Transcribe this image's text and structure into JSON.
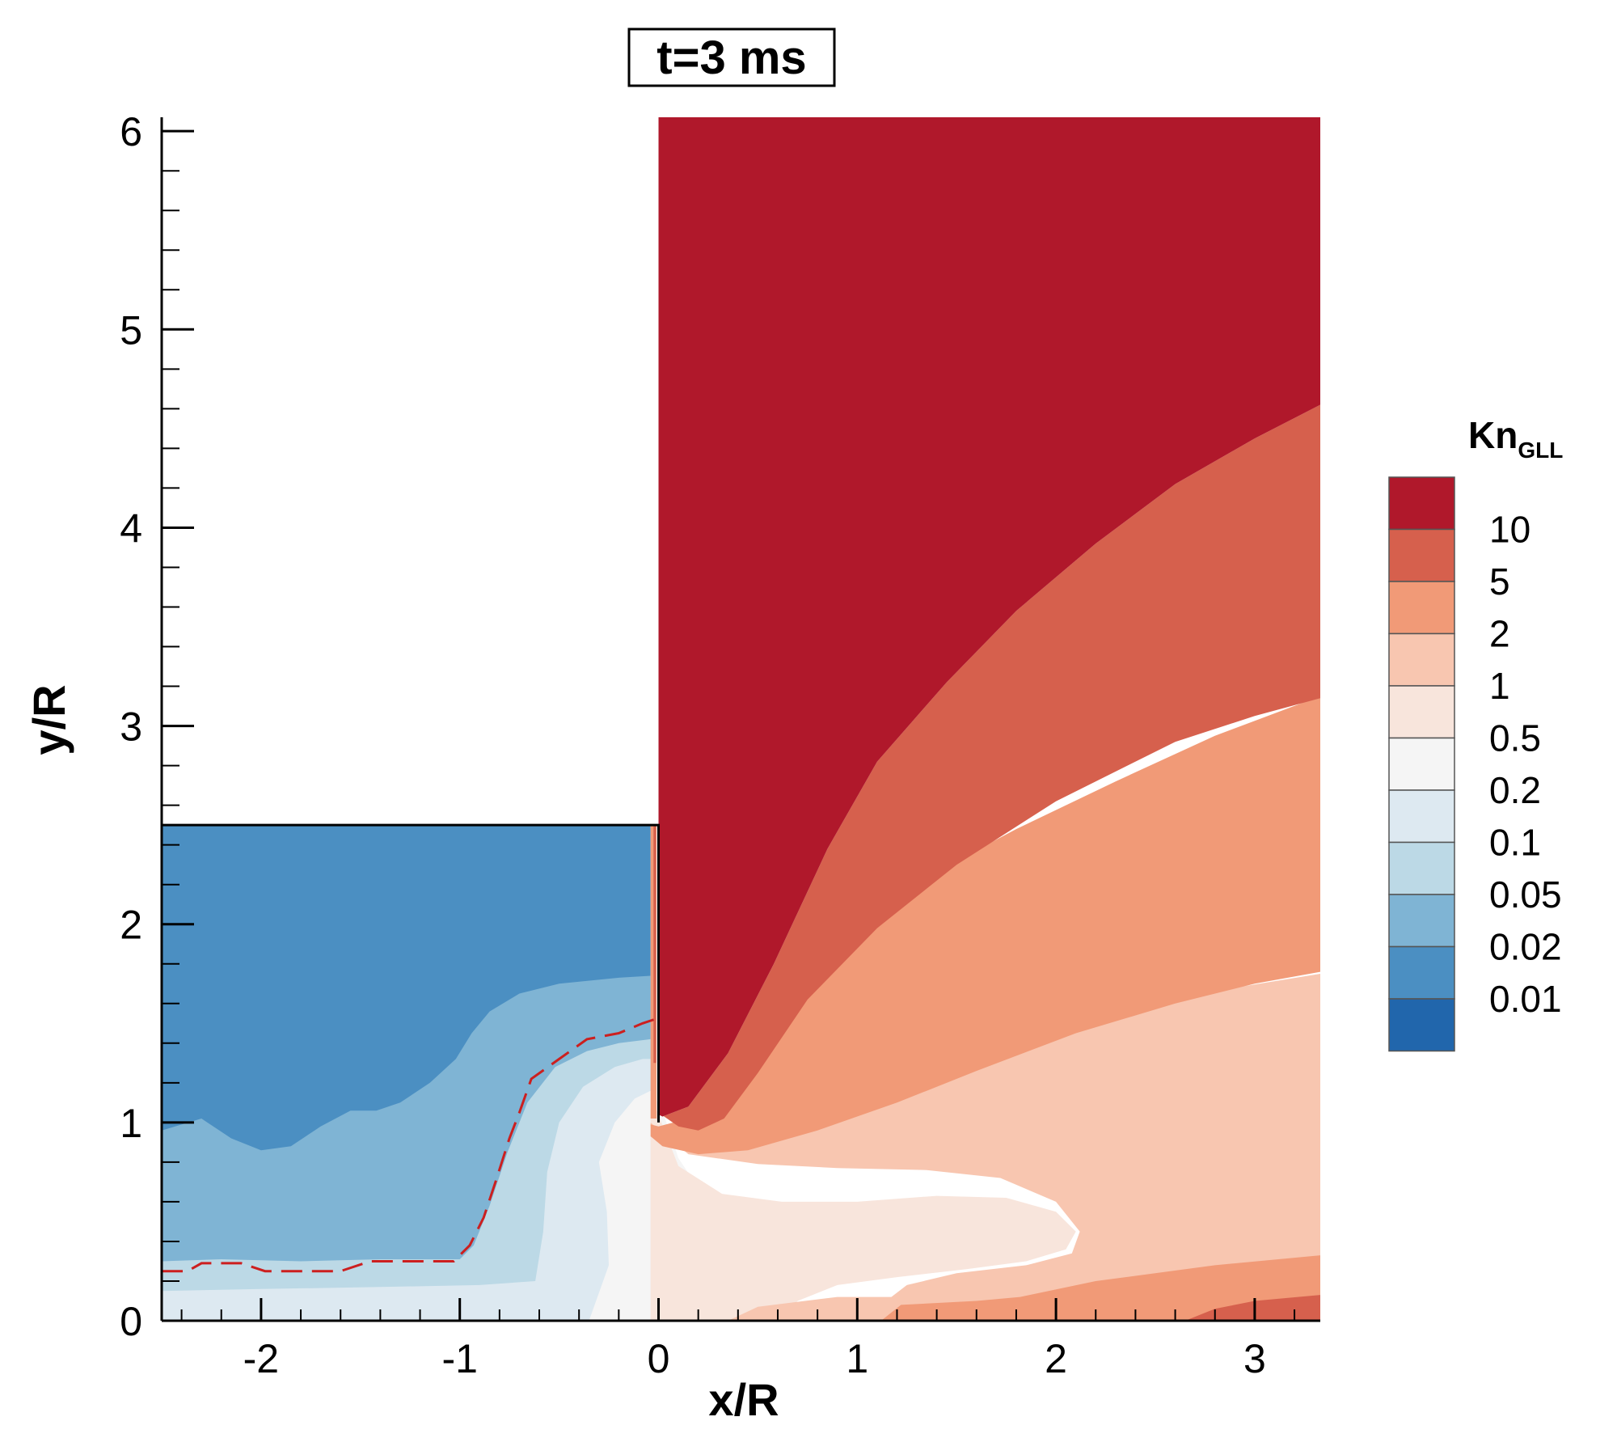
{
  "chart_data": {
    "type": "heatmap",
    "title": "t=3 ms",
    "xlabel": "x/R",
    "ylabel": "y/R",
    "xlim": [
      -2.5,
      3.33
    ],
    "ylim": [
      0,
      6.07
    ],
    "x_ticks": [
      -2,
      -1,
      0,
      1,
      2,
      3
    ],
    "y_ticks": [
      0,
      1,
      2,
      3,
      4,
      5,
      6
    ],
    "x_minor_step": 0.2,
    "y_minor_step": 0.2,
    "legend": {
      "title_main": "Kn",
      "title_sub": "GLL",
      "position": "right",
      "levels": [
        "10",
        "5",
        "2",
        "1",
        "0.5",
        "0.2",
        "0.1",
        "0.05",
        "0.02",
        "0.01"
      ],
      "colors": [
        "#b0182b",
        "#d6604d",
        "#f19a77",
        "#f8c6b0",
        "#f8e5dc",
        "#f5f5f5",
        "#dde9f1",
        "#bcd9e6",
        "#7fb4d4",
        "#4b8fc2",
        "#2166ac"
      ]
    },
    "regions": [
      {
        "name": "chamber",
        "color": "#4b8fc2",
        "points": [
          [
            -2.5,
            2.5
          ],
          [
            -0.04,
            2.5
          ],
          [
            -0.04,
            0
          ],
          [
            -2.5,
            0
          ]
        ]
      },
      {
        "name": "chamber-0.05",
        "color": "#7fb4d4",
        "points": [
          [
            -2.5,
            0
          ],
          [
            -2.5,
            0.96
          ],
          [
            -2.3,
            1.02
          ],
          [
            -2.15,
            0.92
          ],
          [
            -2.0,
            0.86
          ],
          [
            -1.85,
            0.88
          ],
          [
            -1.7,
            0.98
          ],
          [
            -1.55,
            1.06
          ],
          [
            -1.42,
            1.06
          ],
          [
            -1.3,
            1.1
          ],
          [
            -1.15,
            1.2
          ],
          [
            -1.02,
            1.32
          ],
          [
            -0.94,
            1.45
          ],
          [
            -0.85,
            1.56
          ],
          [
            -0.7,
            1.65
          ],
          [
            -0.5,
            1.7
          ],
          [
            -0.2,
            1.73
          ],
          [
            -0.04,
            1.74
          ],
          [
            -0.04,
            0
          ]
        ]
      },
      {
        "name": "chamber-0.1",
        "color": "#bcd9e6",
        "points": [
          [
            -2.5,
            0
          ],
          [
            -2.5,
            0.3
          ],
          [
            -2.2,
            0.31
          ],
          [
            -1.8,
            0.3
          ],
          [
            -1.4,
            0.31
          ],
          [
            -1.0,
            0.31
          ],
          [
            -0.93,
            0.38
          ],
          [
            -0.85,
            0.58
          ],
          [
            -0.76,
            0.85
          ],
          [
            -0.66,
            1.1
          ],
          [
            -0.52,
            1.28
          ],
          [
            -0.36,
            1.36
          ],
          [
            -0.2,
            1.4
          ],
          [
            -0.04,
            1.42
          ],
          [
            -0.04,
            0
          ]
        ]
      },
      {
        "name": "chamber-0.2",
        "color": "#dde9f1",
        "points": [
          [
            -2.5,
            0
          ],
          [
            -2.5,
            0.15
          ],
          [
            -2.0,
            0.16
          ],
          [
            -1.4,
            0.17
          ],
          [
            -0.9,
            0.18
          ],
          [
            -0.62,
            0.2
          ],
          [
            -0.58,
            0.45
          ],
          [
            -0.56,
            0.75
          ],
          [
            -0.5,
            1.0
          ],
          [
            -0.38,
            1.18
          ],
          [
            -0.22,
            1.28
          ],
          [
            -0.08,
            1.32
          ],
          [
            -0.04,
            1.32
          ],
          [
            -0.04,
            0
          ]
        ]
      },
      {
        "name": "chamber-0.5",
        "color": "#f5f5f5",
        "points": [
          [
            -0.35,
            0
          ],
          [
            -0.25,
            0.28
          ],
          [
            -0.26,
            0.55
          ],
          [
            -0.3,
            0.8
          ],
          [
            -0.22,
            1.0
          ],
          [
            -0.12,
            1.12
          ],
          [
            -0.04,
            1.16
          ],
          [
            -0.04,
            0
          ]
        ]
      },
      {
        "name": "plume-0.5",
        "color": "#f5f5f5",
        "points": [
          [
            -0.04,
            0
          ],
          [
            -0.04,
            1.16
          ],
          [
            0.02,
            1.06
          ],
          [
            0.1,
            0.82
          ],
          [
            0.28,
            0.55
          ],
          [
            0.48,
            0.38
          ],
          [
            0.62,
            0.28
          ],
          [
            0.68,
            0.2
          ],
          [
            0.64,
            0.08
          ],
          [
            0.6,
            0
          ]
        ]
      },
      {
        "name": "plume-1",
        "color": "#f8e5dc",
        "points": [
          [
            -0.04,
            1.14
          ],
          [
            0.1,
            0.78
          ],
          [
            0.32,
            0.64
          ],
          [
            0.62,
            0.6
          ],
          [
            1.0,
            0.6
          ],
          [
            1.4,
            0.63
          ],
          [
            1.75,
            0.62
          ],
          [
            2.0,
            0.55
          ],
          [
            2.1,
            0.45
          ],
          [
            2.05,
            0.36
          ],
          [
            1.85,
            0.3
          ],
          [
            1.55,
            0.26
          ],
          [
            1.2,
            0.22
          ],
          [
            0.9,
            0.18
          ],
          [
            0.7,
            0.1
          ],
          [
            0.6,
            0
          ],
          [
            -0.04,
            0
          ]
        ]
      },
      {
        "name": "plume-2",
        "color": "#f8c6b0",
        "points": [
          [
            -0.04,
            1.0
          ],
          [
            0.15,
            0.84
          ],
          [
            0.5,
            0.79
          ],
          [
            0.9,
            0.77
          ],
          [
            1.35,
            0.76
          ],
          [
            1.72,
            0.72
          ],
          [
            2.0,
            0.6
          ],
          [
            2.12,
            0.45
          ],
          [
            2.08,
            0.34
          ],
          [
            1.85,
            0.28
          ],
          [
            1.5,
            0.24
          ],
          [
            1.25,
            0.18
          ],
          [
            1.12,
            0.08
          ],
          [
            1.1,
            0
          ],
          [
            3.33,
            0
          ],
          [
            3.33,
            1.75
          ],
          [
            2.9,
            1.68
          ],
          [
            2.4,
            1.58
          ],
          [
            1.9,
            1.44
          ],
          [
            1.4,
            1.28
          ],
          [
            0.9,
            1.12
          ],
          [
            0.45,
            0.98
          ],
          [
            0.1,
            0.94
          ],
          [
            -0.04,
            0.98
          ]
        ]
      },
      {
        "name": "plume-5",
        "color": "#f19a77",
        "points": [
          [
            -0.04,
            0.93
          ],
          [
            0.02,
            0.88
          ],
          [
            0.2,
            0.84
          ],
          [
            0.45,
            0.86
          ],
          [
            0.8,
            0.96
          ],
          [
            1.2,
            1.1
          ],
          [
            1.6,
            1.26
          ],
          [
            2.1,
            1.45
          ],
          [
            2.6,
            1.6
          ],
          [
            3.0,
            1.7
          ],
          [
            3.33,
            1.76
          ],
          [
            3.33,
            3.15
          ],
          [
            2.8,
            2.95
          ],
          [
            2.3,
            2.72
          ],
          [
            1.8,
            2.48
          ],
          [
            1.35,
            2.24
          ],
          [
            0.95,
            1.95
          ],
          [
            0.6,
            1.58
          ],
          [
            0.35,
            1.25
          ],
          [
            0.15,
            1.02
          ],
          [
            0.0,
            0.98
          ],
          [
            -0.04,
            0.99
          ]
        ]
      },
      {
        "name": "plume-10",
        "color": "#d6604d",
        "points": [
          [
            0.0,
            1.05
          ],
          [
            0.1,
            0.98
          ],
          [
            0.2,
            0.96
          ],
          [
            0.33,
            1.02
          ],
          [
            0.5,
            1.25
          ],
          [
            0.75,
            1.62
          ],
          [
            1.1,
            1.98
          ],
          [
            1.5,
            2.3
          ],
          [
            2.0,
            2.62
          ],
          [
            2.6,
            2.92
          ],
          [
            3.0,
            3.05
          ],
          [
            3.33,
            3.14
          ],
          [
            3.33,
            4.62
          ],
          [
            3.0,
            4.45
          ],
          [
            2.6,
            4.22
          ],
          [
            2.2,
            3.92
          ],
          [
            1.8,
            3.58
          ],
          [
            1.45,
            3.22
          ],
          [
            1.1,
            2.82
          ],
          [
            0.85,
            2.38
          ],
          [
            0.58,
            1.8
          ],
          [
            0.35,
            1.35
          ],
          [
            0.15,
            1.08
          ],
          [
            0.02,
            1.03
          ]
        ]
      },
      {
        "name": "plume-high",
        "color": "#b0182b",
        "points": [
          [
            0.0,
            6.07
          ],
          [
            3.33,
            6.07
          ],
          [
            3.33,
            4.62
          ],
          [
            3.0,
            4.45
          ],
          [
            2.6,
            4.22
          ],
          [
            2.2,
            3.92
          ],
          [
            1.8,
            3.58
          ],
          [
            1.45,
            3.22
          ],
          [
            1.1,
            2.82
          ],
          [
            0.85,
            2.38
          ],
          [
            0.58,
            1.8
          ],
          [
            0.35,
            1.35
          ],
          [
            0.15,
            1.08
          ],
          [
            0.02,
            1.03
          ],
          [
            0.0,
            1.04
          ]
        ]
      },
      {
        "name": "floor-2",
        "color": "#f8c6b0",
        "points": [
          [
            0.35,
            0
          ],
          [
            0.5,
            0.07
          ],
          [
            0.9,
            0.12
          ],
          [
            1.2,
            0.12
          ],
          [
            1.35,
            0
          ],
          [
            0.35,
            0
          ]
        ]
      },
      {
        "name": "floor-5",
        "color": "#f19a77",
        "points": [
          [
            1.12,
            0
          ],
          [
            1.22,
            0.08
          ],
          [
            1.6,
            0.1
          ],
          [
            1.82,
            0.12
          ],
          [
            2.2,
            0.2
          ],
          [
            2.8,
            0.28
          ],
          [
            3.33,
            0.33
          ],
          [
            3.33,
            0
          ],
          [
            1.12,
            0
          ]
        ]
      },
      {
        "name": "floor-10",
        "color": "#d6604d",
        "points": [
          [
            2.65,
            0
          ],
          [
            2.8,
            0.06
          ],
          [
            3.0,
            0.1
          ],
          [
            3.33,
            0.13
          ],
          [
            3.33,
            0
          ],
          [
            2.65,
            0
          ]
        ]
      },
      {
        "name": "nozzle-lip-5",
        "color": "#f19a77",
        "points": [
          [
            -0.04,
            1.02
          ],
          [
            -0.01,
            1.02
          ],
          [
            -0.01,
            2.5
          ],
          [
            -0.04,
            2.5
          ]
        ]
      },
      {
        "name": "nozzle-lip-10",
        "color": "#d6604d",
        "points": [
          [
            -0.025,
            1.3
          ],
          [
            -0.012,
            1.3
          ],
          [
            -0.012,
            2.5
          ],
          [
            -0.025,
            2.5
          ]
        ]
      }
    ],
    "boundary": [
      [
        -2.5,
        2.5
      ],
      [
        0.0,
        2.5
      ],
      [
        0.0,
        1.0
      ]
    ],
    "dashed_line": {
      "color": "#cc1f1f",
      "points": [
        [
          -2.5,
          0.25
        ],
        [
          -2.37,
          0.25
        ],
        [
          -2.3,
          0.29
        ],
        [
          -2.1,
          0.29
        ],
        [
          -1.98,
          0.25
        ],
        [
          -1.6,
          0.25
        ],
        [
          -1.45,
          0.3
        ],
        [
          -1.03,
          0.3
        ],
        [
          -0.95,
          0.38
        ],
        [
          -0.88,
          0.52
        ],
        [
          -0.82,
          0.7
        ],
        [
          -0.75,
          0.92
        ],
        [
          -0.7,
          1.05
        ],
        [
          -0.64,
          1.22
        ],
        [
          -0.5,
          1.32
        ],
        [
          -0.36,
          1.42
        ],
        [
          -0.2,
          1.45
        ],
        [
          -0.08,
          1.5
        ],
        [
          -0.02,
          1.52
        ]
      ]
    }
  }
}
